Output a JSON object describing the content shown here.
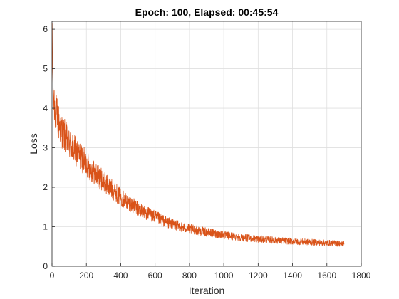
{
  "chart_data": {
    "type": "line",
    "title": "Epoch: 100, Elapsed: 00:45:54",
    "xlabel": "Iteration",
    "ylabel": "Loss",
    "xlim": [
      0,
      1800
    ],
    "ylim": [
      0,
      6.2
    ],
    "xticks": [
      0,
      200,
      400,
      600,
      800,
      1000,
      1200,
      1400,
      1600,
      1800
    ],
    "yticks": [
      0,
      1,
      2,
      3,
      4,
      5,
      6
    ],
    "grid": true,
    "legend": "none",
    "series": [
      {
        "color": "#d95319",
        "x": [
          1,
          3,
          6,
          10,
          20,
          35,
          50,
          75,
          100,
          150,
          200,
          250,
          300,
          350,
          400,
          450,
          500,
          550,
          600,
          650,
          700,
          750,
          800,
          900,
          1000,
          1100,
          1200,
          1300,
          1400,
          1500,
          1600,
          1700
        ],
        "values": [
          6.1,
          5.2,
          4.6,
          4.2,
          3.95,
          3.7,
          3.5,
          3.3,
          3.1,
          2.85,
          2.6,
          2.35,
          2.15,
          1.95,
          1.75,
          1.6,
          1.45,
          1.35,
          1.25,
          1.15,
          1.07,
          1.0,
          0.95,
          0.86,
          0.79,
          0.73,
          0.69,
          0.66,
          0.63,
          0.61,
          0.59,
          0.57
        ]
      }
    ]
  }
}
